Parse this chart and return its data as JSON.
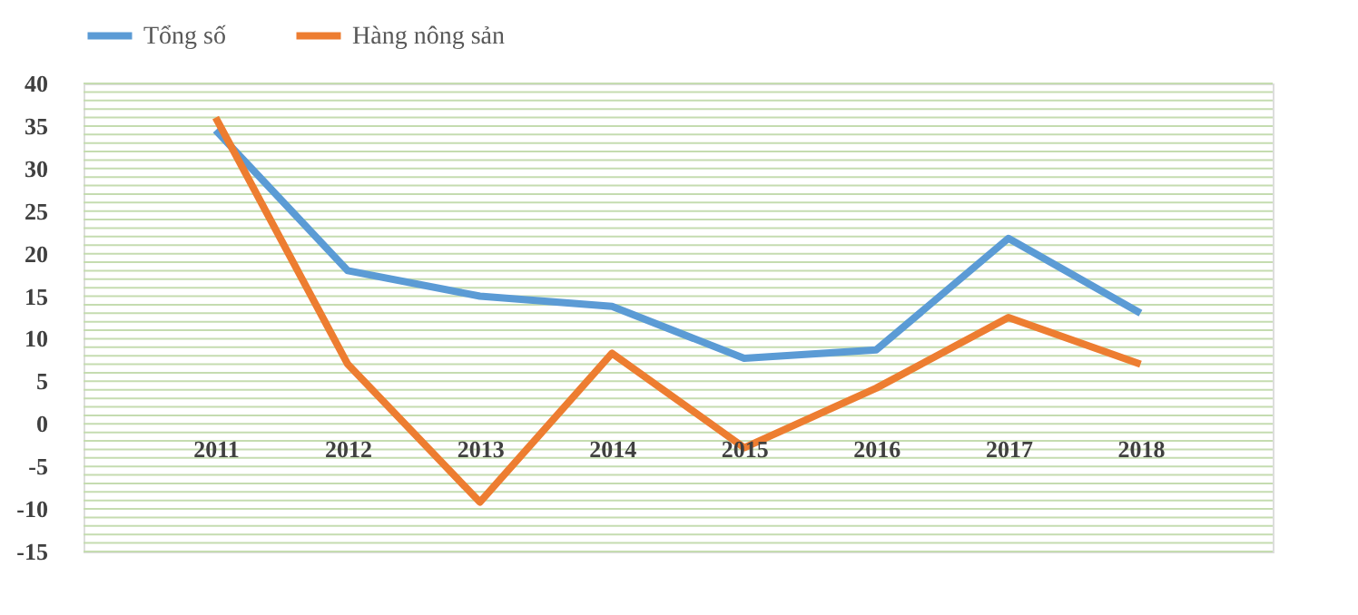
{
  "chart_data": {
    "type": "line",
    "categories": [
      "2011",
      "2012",
      "2013",
      "2014",
      "2015",
      "2016",
      "2017",
      "2018"
    ],
    "series": [
      {
        "name": "Tổng số",
        "color": "#5b9bd5",
        "values": [
          34.5,
          18,
          15,
          13.8,
          7.7,
          8.7,
          21.8,
          13
        ]
      },
      {
        "name": "Hàng nông sản",
        "color": "#ed7d31",
        "values": [
          36,
          7,
          -9.2,
          8.3,
          -2.8,
          4.2,
          12.5,
          7
        ]
      }
    ],
    "ylim": [
      -15,
      40
    ],
    "yticks": [
      -15,
      -10,
      -5,
      0,
      5,
      10,
      15,
      20,
      25,
      30,
      35,
      40
    ],
    "grid": "y",
    "legend": "top",
    "marker": "none",
    "line_style": "solid"
  }
}
